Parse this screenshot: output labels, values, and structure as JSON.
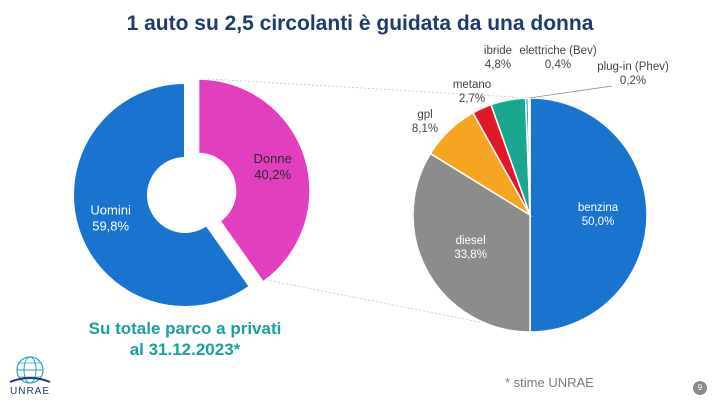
{
  "title": "1 auto su 2,5 circolanti è guidata da una donna",
  "caption": [
    "Su totale parco a privati",
    "al 31.12.2023*"
  ],
  "footnote": "* stime UNRAE",
  "logo_text": "UNRAE",
  "page_number": "9",
  "chart_data": [
    {
      "type": "pie",
      "subtype": "donut",
      "categories": [
        "Uomini",
        "Donne"
      ],
      "values": [
        59.8,
        40.2
      ],
      "value_labels": [
        "59,8%",
        "40,2%"
      ],
      "colors": [
        "#1a73cf",
        "#e23fbf"
      ],
      "exploded": "Donne"
    },
    {
      "type": "pie",
      "categories": [
        "benzina",
        "diesel",
        "gpl",
        "metano",
        "ibride",
        "elettriche (Bev)",
        "plug-in (Phev)"
      ],
      "values": [
        50.0,
        33.8,
        8.1,
        2.7,
        4.8,
        0.4,
        0.2
      ],
      "value_labels": [
        "50,0%",
        "33,8%",
        "8,1%",
        "2,7%",
        "4,8%",
        "0,4%",
        "0,2%"
      ],
      "colors": [
        "#1a73cf",
        "#8c8c8c",
        "#f5a522",
        "#e0192a",
        "#1aa78f",
        "#4aa0e0",
        "#e8e03a"
      ],
      "label_positions": [
        "inside",
        "inside",
        "outside",
        "outside",
        "outside",
        "outside",
        "outside"
      ]
    }
  ]
}
